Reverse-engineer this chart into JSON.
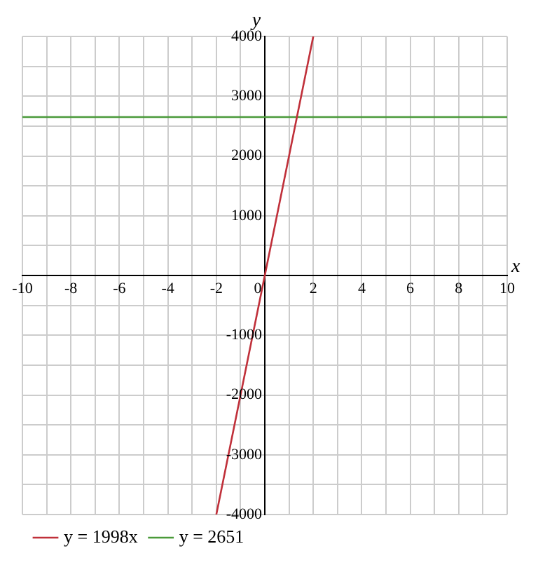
{
  "chart_data": {
    "type": "line",
    "xlabel": "x",
    "ylabel": "y",
    "xlim": [
      -10,
      10
    ],
    "ylim": [
      -4000,
      4000
    ],
    "xticks": [
      -10,
      {
        "value": -9,
        "label": null
      },
      -8,
      {
        "value": -7,
        "label": null
      },
      -6,
      {
        "value": -5,
        "label": null
      },
      -4,
      {
        "value": -3,
        "label": null
      },
      -2,
      {
        "value": -1,
        "label": null
      },
      0,
      {
        "value": 1,
        "label": null
      },
      2,
      {
        "value": 3,
        "label": null
      },
      4,
      {
        "value": 5,
        "label": null
      },
      6,
      {
        "value": 7,
        "label": null
      },
      8,
      {
        "value": 9,
        "label": null
      },
      10
    ],
    "yticks": [
      -4000,
      {
        "value": -3500,
        "label": null
      },
      -3000,
      {
        "value": -2500,
        "label": null
      },
      -2000,
      {
        "value": -1500,
        "label": null
      },
      -1000,
      {
        "value": -500,
        "label": null
      },
      {
        "value": 0,
        "label": null
      },
      {
        "value": 500,
        "label": null
      },
      1000,
      {
        "value": 1500,
        "label": null
      },
      2000,
      {
        "value": 2500,
        "label": null
      },
      3000,
      {
        "value": 3500,
        "label": null
      },
      4000
    ],
    "grid": true,
    "legend": "bottom left",
    "marker": "none",
    "line_style": "solid",
    "series": [
      {
        "name": "y = 1998x",
        "color": "#c0303a",
        "x": [
          -2,
          2
        ],
        "values": [
          -4000,
          4000
        ]
      },
      {
        "name": "y = 2651",
        "color": "#4a9a3a",
        "x": [
          -10,
          10
        ],
        "values": [
          2651,
          2651
        ]
      }
    ]
  }
}
